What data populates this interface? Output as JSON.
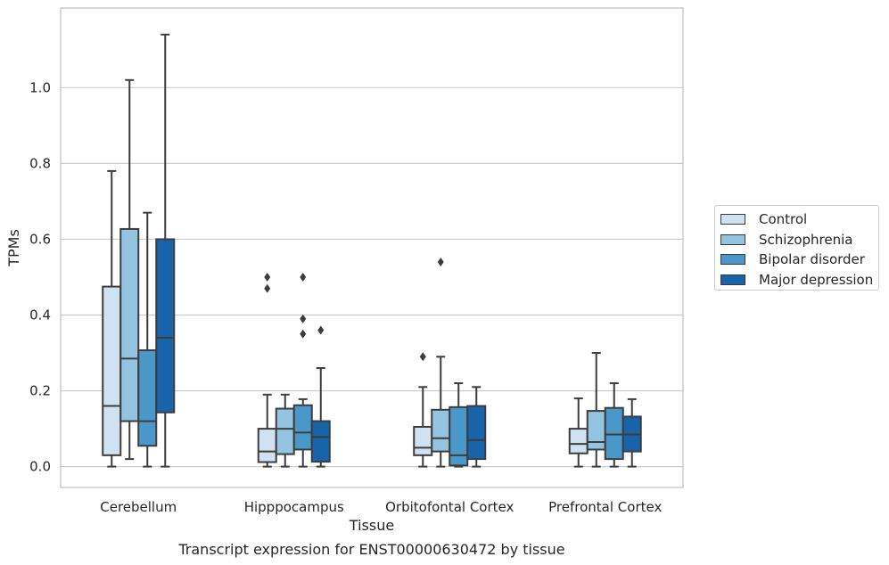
{
  "chart_data": {
    "type": "boxplot",
    "title": "Transcript expression for ENST00000630472 by tissue",
    "xlabel": "Tissue",
    "ylabel": "TPMs",
    "ylim": [
      -0.055,
      1.21
    ],
    "yticks": [
      "0.0",
      "0.2",
      "0.4",
      "0.6",
      "0.8",
      "1.0"
    ],
    "grid": "horizontal",
    "legend_position": "right",
    "categories": [
      "Cerebellum",
      "Hipppocampus",
      "Orbitofontal Cortex",
      "Prefrontal Cortex"
    ],
    "series": [
      {
        "name": "Control",
        "color": "#d0e1f2",
        "boxes": [
          {
            "whisker_low": 0.0,
            "q1": 0.03,
            "median": 0.16,
            "q3": 0.475,
            "whisker_high": 0.78,
            "outliers": []
          },
          {
            "whisker_low": 0.0,
            "q1": 0.012,
            "median": 0.04,
            "q3": 0.1,
            "whisker_high": 0.19,
            "outliers": [
              0.5,
              0.47
            ]
          },
          {
            "whisker_low": 0.0,
            "q1": 0.03,
            "median": 0.05,
            "q3": 0.105,
            "whisker_high": 0.21,
            "outliers": [
              0.29
            ]
          },
          {
            "whisker_low": 0.0,
            "q1": 0.035,
            "median": 0.06,
            "q3": 0.1,
            "whisker_high": 0.18,
            "outliers": []
          }
        ]
      },
      {
        "name": "Schizophrenia",
        "color": "#94c4df",
        "boxes": [
          {
            "whisker_low": 0.02,
            "q1": 0.12,
            "median": 0.285,
            "q3": 0.627,
            "whisker_high": 1.02,
            "outliers": []
          },
          {
            "whisker_low": 0.0,
            "q1": 0.033,
            "median": 0.1,
            "q3": 0.153,
            "whisker_high": 0.19,
            "outliers": []
          },
          {
            "whisker_low": 0.0,
            "q1": 0.04,
            "median": 0.075,
            "q3": 0.15,
            "whisker_high": 0.29,
            "outliers": [
              0.54
            ]
          },
          {
            "whisker_low": 0.0,
            "q1": 0.045,
            "median": 0.065,
            "q3": 0.147,
            "whisker_high": 0.3,
            "outliers": []
          }
        ]
      },
      {
        "name": "Bipolar disorder",
        "color": "#4a98c9",
        "boxes": [
          {
            "whisker_low": 0.0,
            "q1": 0.055,
            "median": 0.12,
            "q3": 0.307,
            "whisker_high": 0.67,
            "outliers": []
          },
          {
            "whisker_low": 0.0,
            "q1": 0.045,
            "median": 0.09,
            "q3": 0.162,
            "whisker_high": 0.178,
            "outliers": [
              0.5,
              0.39,
              0.35
            ]
          },
          {
            "whisker_low": 0.0,
            "q1": 0.003,
            "median": 0.03,
            "q3": 0.157,
            "whisker_high": 0.22,
            "outliers": []
          },
          {
            "whisker_low": 0.0,
            "q1": 0.02,
            "median": 0.085,
            "q3": 0.155,
            "whisker_high": 0.22,
            "outliers": []
          }
        ]
      },
      {
        "name": "Major depression",
        "color": "#1764ab",
        "boxes": [
          {
            "whisker_low": 0.0,
            "q1": 0.143,
            "median": 0.34,
            "q3": 0.6,
            "whisker_high": 1.14,
            "outliers": []
          },
          {
            "whisker_low": 0.0,
            "q1": 0.013,
            "median": 0.078,
            "q3": 0.12,
            "whisker_high": 0.26,
            "outliers": [
              0.36
            ]
          },
          {
            "whisker_low": 0.0,
            "q1": 0.02,
            "median": 0.07,
            "q3": 0.16,
            "whisker_high": 0.21,
            "outliers": []
          },
          {
            "whisker_low": 0.0,
            "q1": 0.04,
            "median": 0.085,
            "q3": 0.132,
            "whisker_high": 0.178,
            "outliers": []
          }
        ]
      }
    ]
  }
}
